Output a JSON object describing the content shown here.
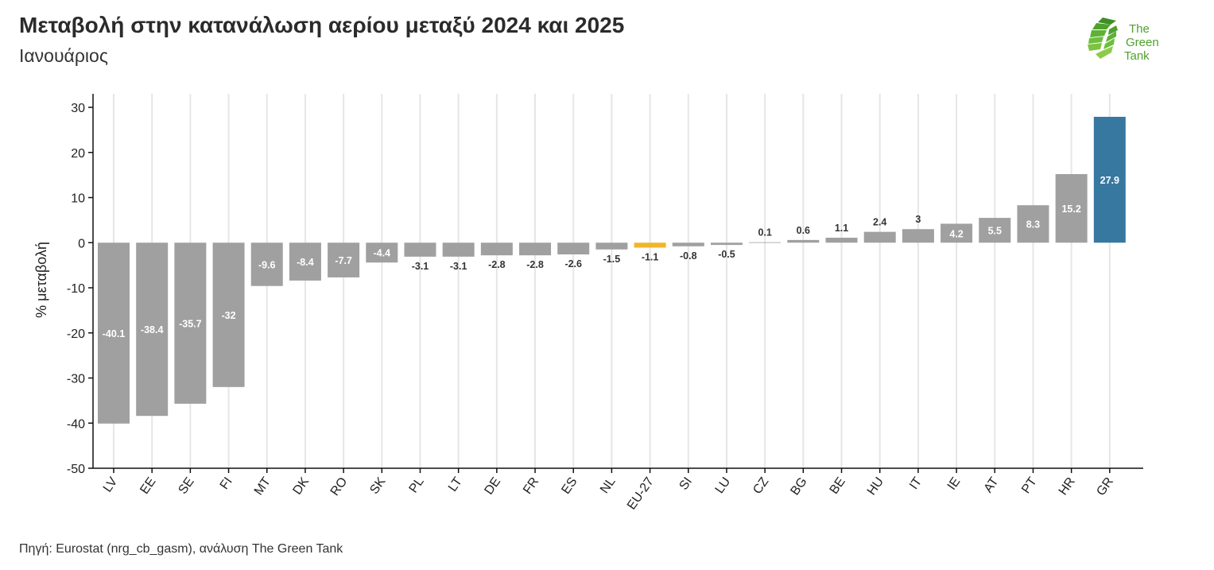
{
  "header": {
    "title": "Μεταβολή στην κατανάλωση αερίου μεταξύ 2024 και 2025",
    "subtitle": "Ιανουάριος"
  },
  "logo": {
    "text_line1": "The",
    "text_line2": "Green",
    "text_line3": "Tank",
    "icon": "leaf-fan-icon"
  },
  "footer": {
    "source": "Πηγή: Eurostat (nrg_cb_gasm), ανάλυση The Green Tank"
  },
  "colors": {
    "default_bar": "#a0a0a0",
    "eu_bar": "#f0b62b",
    "highlight_bar": "#3778a0",
    "grid": "#e6e6e6",
    "axis": "#111111",
    "logo_green": "#6cbf3c"
  },
  "chart_data": {
    "type": "bar",
    "ylabel": "% μεταβολή",
    "xlabel": "",
    "ylim": [
      -50,
      30
    ],
    "yticks": [
      30,
      20,
      10,
      0,
      -10,
      -20,
      -30,
      -40,
      -50
    ],
    "grid": "vertical",
    "categories": [
      "LV",
      "EE",
      "SE",
      "FI",
      "MT",
      "DK",
      "RO",
      "SK",
      "PL",
      "LT",
      "DE",
      "FR",
      "ES",
      "NL",
      "EU-27",
      "SI",
      "LU",
      "CZ",
      "BG",
      "BE",
      "HU",
      "IT",
      "IE",
      "AT",
      "PT",
      "HR",
      "GR"
    ],
    "values": [
      -40.1,
      -38.4,
      -35.7,
      -32,
      -9.6,
      -8.4,
      -7.7,
      -4.4,
      -3.1,
      -3.1,
      -2.8,
      -2.8,
      -2.6,
      -1.5,
      -1.1,
      -0.8,
      -0.5,
      0.1,
      0.6,
      1.1,
      2.4,
      3,
      4.2,
      5.5,
      8.3,
      15.2,
      27.9
    ],
    "labels": [
      "-40.1",
      "-38.4",
      "-35.7",
      "-32",
      "-9.6",
      "-8.4",
      "-7.7",
      "-4.4",
      "-3.1",
      "-3.1",
      "-2.8",
      "-2.8",
      "-2.6",
      "-1.5",
      "-1.1",
      "-0.8",
      "-0.5",
      "0.1",
      "0.6",
      "1.1",
      "2.4",
      "3",
      "4.2",
      "5.5",
      "8.3",
      "15.2",
      "27.9"
    ],
    "highlight": {
      "EU-27": "eu_bar",
      "GR": "highlight_bar"
    }
  }
}
